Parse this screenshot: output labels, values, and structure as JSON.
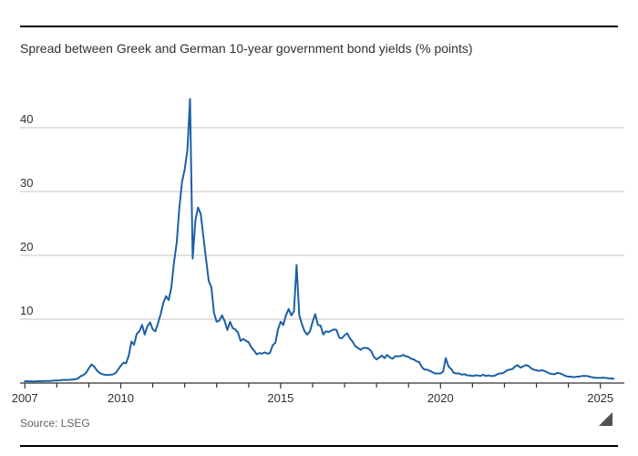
{
  "page": {
    "background": "#ffffff",
    "text_color": "#33302e",
    "muted_color": "#66605c",
    "rule_color": "#000000",
    "grid_color": "#c9c6c2",
    "axis_color": "#33302e"
  },
  "header": {
    "title": "Spread between Greek and German 10-year government bond yields (% points)"
  },
  "footer": {
    "source": "Source: LSEG"
  },
  "chart_data": {
    "type": "line",
    "title": "Spread between Greek and German 10-year government bond yields (% points)",
    "source": "Source: LSEG",
    "line_color": "#1d60a5",
    "grid": "horizontal",
    "legend": "none",
    "x_unit": "year (monthly samples)",
    "x_start": 2007.0,
    "x_step_years": 0.0833333,
    "x_end_approx": 2025.42,
    "x_range": [
      2006.85,
      2025.75
    ],
    "y_range": [
      0,
      46
    ],
    "y_ticks": [
      10,
      20,
      30,
      40
    ],
    "x_tick_labels": [
      2007,
      2010,
      2015,
      2020,
      2025
    ],
    "x_minor_tick_years": [
      2007,
      2008,
      2009,
      2010,
      2011,
      2012,
      2013,
      2014,
      2015,
      2016,
      2017,
      2018,
      2019,
      2020,
      2021,
      2022,
      2023,
      2024,
      2025
    ],
    "values": [
      0.28,
      0.27,
      0.27,
      0.26,
      0.27,
      0.28,
      0.28,
      0.3,
      0.32,
      0.33,
      0.35,
      0.38,
      0.4,
      0.42,
      0.48,
      0.5,
      0.48,
      0.52,
      0.55,
      0.6,
      0.75,
      1.1,
      1.25,
      1.6,
      2.3,
      2.9,
      2.6,
      2.0,
      1.6,
      1.4,
      1.3,
      1.25,
      1.3,
      1.35,
      1.55,
      2.1,
      2.7,
      3.2,
      3.1,
      4.3,
      6.5,
      6.0,
      7.7,
      8.1,
      9.1,
      7.6,
      8.9,
      9.5,
      8.4,
      8.1,
      9.4,
      10.8,
      12.6,
      13.6,
      13.0,
      15.0,
      19.0,
      22.0,
      27.5,
      31.5,
      33.5,
      36.5,
      44.5,
      19.5,
      25.5,
      27.5,
      26.5,
      23.0,
      19.5,
      16.0,
      15.0,
      11.0,
      9.6,
      9.8,
      10.6,
      9.7,
      8.3,
      9.6,
      8.6,
      8.4,
      7.9,
      6.6,
      6.9,
      6.6,
      6.4,
      5.6,
      5.1,
      4.5,
      4.7,
      4.6,
      4.8,
      4.6,
      4.7,
      5.9,
      6.3,
      8.4,
      9.6,
      9.1,
      10.6,
      11.6,
      10.6,
      11.2,
      18.5,
      10.6,
      9.2,
      8.1,
      7.6,
      8.1,
      9.6,
      10.8,
      9.1,
      9.0,
      7.6,
      8.1,
      8.0,
      8.2,
      8.4,
      8.3,
      7.1,
      7.0,
      7.5,
      7.8,
      7.0,
      6.5,
      5.8,
      5.5,
      5.2,
      5.5,
      5.5,
      5.4,
      5.0,
      4.1,
      3.7,
      4.0,
      4.3,
      3.9,
      4.4,
      4.0,
      3.8,
      4.2,
      4.2,
      4.2,
      4.4,
      4.2,
      4.1,
      3.8,
      3.7,
      3.4,
      3.3,
      2.5,
      2.1,
      2.1,
      1.9,
      1.7,
      1.5,
      1.5,
      1.5,
      1.8,
      3.9,
      2.6,
      2.2,
      1.6,
      1.5,
      1.5,
      1.3,
      1.4,
      1.2,
      1.2,
      1.1,
      1.2,
      1.2,
      1.1,
      1.3,
      1.1,
      1.2,
      1.1,
      1.1,
      1.3,
      1.5,
      1.5,
      1.7,
      2.0,
      2.1,
      2.2,
      2.6,
      2.8,
      2.4,
      2.6,
      2.8,
      2.7,
      2.3,
      2.1,
      2.0,
      1.9,
      2.0,
      1.9,
      1.7,
      1.5,
      1.4,
      1.4,
      1.6,
      1.5,
      1.3,
      1.1,
      1.0,
      1.0,
      0.9,
      1.0,
      1.0,
      1.1,
      1.1,
      1.1,
      1.0,
      0.9,
      0.85,
      0.8,
      0.8,
      0.85,
      0.8,
      0.75,
      0.72,
      0.68
    ]
  }
}
